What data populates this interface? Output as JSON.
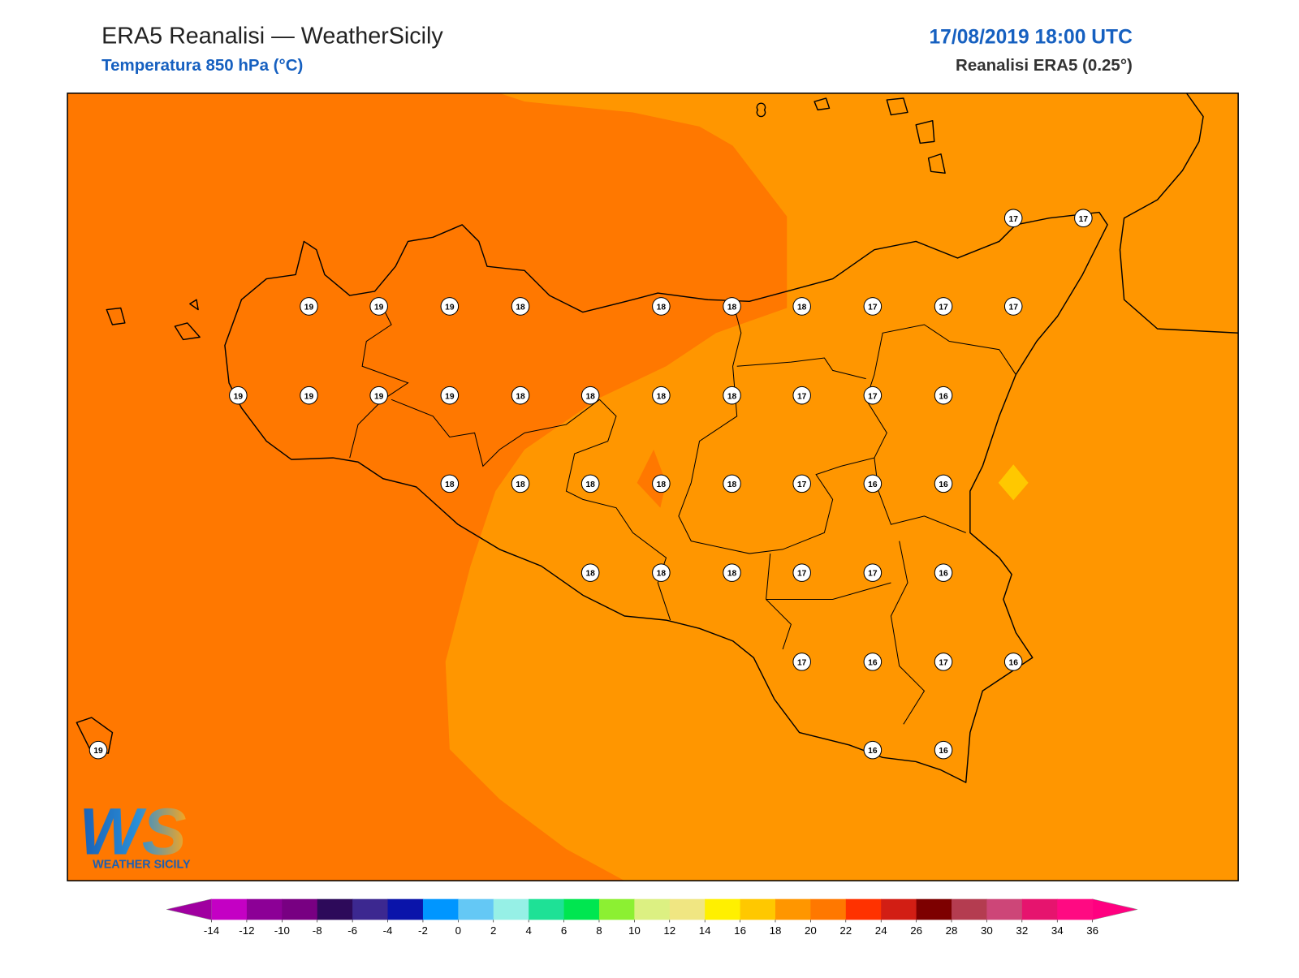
{
  "header": {
    "title": "ERA5 Reanalisi — WeatherSicily",
    "subtitle": "Temperatura 850 hPa (°C)",
    "datetime": "17/08/2019 18:00 UTC",
    "source": "Reanalisi ERA5 (0.25°)"
  },
  "stations": [
    17,
    17,
    19,
    19,
    19,
    18,
    18,
    18,
    18,
    17,
    17,
    17,
    19,
    19,
    19,
    19,
    18,
    18,
    18,
    18,
    17,
    17,
    16,
    18,
    18,
    18,
    18,
    18,
    17,
    16,
    16,
    18,
    18,
    18,
    17,
    17,
    16,
    17,
    16,
    17,
    16,
    19,
    16,
    16
  ],
  "logo": {
    "mark": "WS",
    "text": "WEATHER SICILY"
  },
  "colorbar": {
    "lim": [
      -14,
      36
    ],
    "ticks": [
      -14,
      -12,
      -10,
      -8,
      -6,
      -4,
      -2,
      0,
      2,
      4,
      6,
      8,
      10,
      12,
      14,
      16,
      18,
      20,
      22,
      24,
      26,
      28,
      30,
      32,
      34,
      36
    ],
    "colors": [
      "#c400c4",
      "#8c0096",
      "#780082",
      "#2d0a5a",
      "#3c2890",
      "#0a14aa",
      "#0096ff",
      "#64c8f5",
      "#96f0e6",
      "#1ee196",
      "#00e650",
      "#8cf032",
      "#dcf082",
      "#f0e682",
      "#fff000",
      "#ffc800",
      "#ff9600",
      "#ff7800",
      "#ff3200",
      "#d21e14",
      "#7d0000",
      "#b43c50",
      "#cd4678",
      "#e6146e",
      "#ff0a82"
    ],
    "under": "#a000a0",
    "over": "#ff0080"
  }
}
